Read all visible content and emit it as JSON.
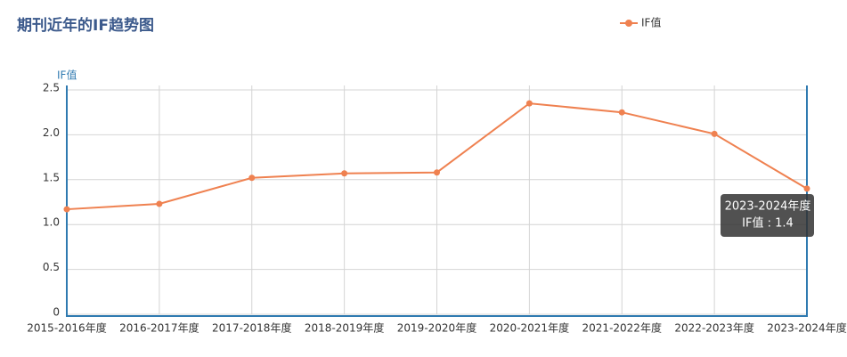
{
  "chart_data": {
    "type": "line",
    "title": "期刊近年的IF趋势图",
    "y_label": "IF值",
    "categories": [
      "2015-2016年度",
      "2016-2017年度",
      "2017-2018年度",
      "2018-2019年度",
      "2019-2020年度",
      "2020-2021年度",
      "2021-2022年度",
      "2022-2023年度",
      "2023-2024年度"
    ],
    "series": [
      {
        "name": "IF值",
        "color": "#ef8150",
        "values": [
          1.17,
          1.23,
          1.52,
          1.57,
          1.58,
          2.35,
          2.25,
          2.01,
          1.4
        ]
      }
    ],
    "ylim": [
      0,
      2.5
    ],
    "yticks": [
      0,
      0.5,
      {
        "value": 1,
        "label": "1.0"
      },
      1.5,
      {
        "value": 2,
        "label": "2.0"
      },
      2.5
    ],
    "grid": true,
    "legend": "top",
    "tooltip": {
      "category": "2023-2024年度",
      "label": "IF值 : 1.4"
    }
  }
}
